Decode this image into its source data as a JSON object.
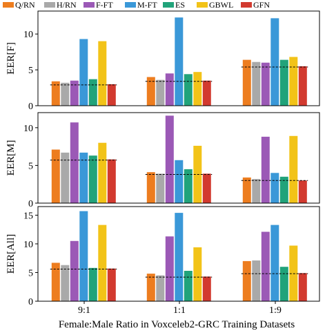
{
  "chart_data": {
    "type": "bar",
    "legend_position": "top",
    "grid": false,
    "series": [
      {
        "name": "Q/RN",
        "color": "#ed7d1f"
      },
      {
        "name": "H/RN",
        "color": "#a9a9a9"
      },
      {
        "name": "F-FT",
        "color": "#9b59b6"
      },
      {
        "name": "M-FT",
        "color": "#3a98d8"
      },
      {
        "name": "ES",
        "color": "#21a37a"
      },
      {
        "name": "GBWL",
        "color": "#f2c318"
      },
      {
        "name": "GFN",
        "color": "#d23a2f"
      }
    ],
    "categories": [
      "9:1",
      "1:1",
      "1:9"
    ],
    "xlabel": "Female:Male Ratio in Voxceleb2-GRC Training Datasets",
    "panels": [
      {
        "ylabel": "EER[F]",
        "ylim": [
          0,
          13.2
        ],
        "yticks": [
          0,
          5,
          10
        ],
        "values": [
          [
            3.4,
            3.2,
            3.5,
            9.3,
            3.7,
            9.0,
            3.0
          ],
          [
            4.0,
            3.6,
            4.5,
            12.3,
            4.4,
            4.7,
            3.5
          ],
          [
            6.4,
            6.1,
            6.0,
            12.2,
            6.4,
            6.8,
            5.5
          ]
        ],
        "reference": [
          2.9,
          3.4,
          5.4
        ]
      },
      {
        "ylabel": "EER[M]",
        "ylim": [
          0,
          12.0
        ],
        "yticks": [
          0,
          5,
          10
        ],
        "values": [
          [
            7.1,
            6.7,
            10.7,
            6.7,
            6.3,
            8.0,
            5.8
          ],
          [
            4.1,
            3.9,
            11.6,
            5.7,
            4.5,
            7.6,
            3.9
          ],
          [
            3.4,
            3.2,
            8.8,
            4.0,
            3.5,
            8.9,
            3.0
          ]
        ],
        "reference": [
          5.7,
          3.8,
          3.0
        ]
      },
      {
        "ylabel": "EER[All]",
        "ylim": [
          0,
          16.5
        ],
        "yticks": [
          0,
          5,
          10,
          15
        ],
        "values": [
          [
            6.7,
            6.3,
            10.5,
            15.7,
            5.8,
            13.3,
            5.7
          ],
          [
            4.8,
            4.5,
            11.3,
            15.4,
            5.3,
            9.4,
            4.3
          ],
          [
            7.0,
            7.1,
            12.1,
            13.3,
            6.0,
            9.7,
            4.9
          ]
        ],
        "reference": [
          5.6,
          4.2,
          4.8
        ]
      }
    ]
  }
}
